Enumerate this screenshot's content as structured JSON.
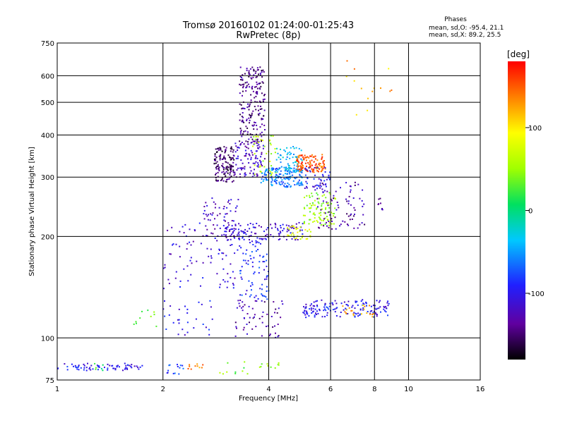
{
  "chart_data": {
    "type": "scatter",
    "title": "Tromsø 20160102 01:24:00-01:25:43",
    "subtitle": "RwPretec (8p)",
    "xlabel": "Frequency [MHz]",
    "ylabel": "Stationary phase Virtual Height [km]",
    "xscale": "log",
    "yscale": "log",
    "xlim": [
      1,
      16
    ],
    "ylim": [
      75,
      750
    ],
    "xticks": [
      1,
      2,
      4,
      6,
      8,
      10,
      16
    ],
    "yticks": [
      75,
      100,
      200,
      300,
      400,
      500,
      600,
      750
    ],
    "grid": true,
    "phases": {
      "title": "Phases",
      "line_o": "mean, sd,O: -95.4, 21.1",
      "line_x": "mean, sd,X:  89.2, 25.5"
    },
    "colorbar": {
      "label": "[deg]",
      "range": [
        -180,
        180
      ],
      "ticks": [
        100,
        0,
        -100
      ],
      "colormap": "rainbow"
    },
    "clusters": [
      {
        "x": [
          1.0,
          1.75
        ],
        "y": [
          80,
          84
        ],
        "phase": -100,
        "n": 70
      },
      {
        "x": [
          1.25,
          1.35
        ],
        "y": [
          80,
          84
        ],
        "phase": 10,
        "n": 6
      },
      {
        "x": [
          2.0,
          2.3
        ],
        "y": [
          78,
          84
        ],
        "phase": -80,
        "n": 14
      },
      {
        "x": [
          2.35,
          2.6
        ],
        "y": [
          80,
          84
        ],
        "phase": 140,
        "n": 10
      },
      {
        "x": [
          2.9,
          4.3
        ],
        "y": [
          78,
          86
        ],
        "phase": 40,
        "n": 20
      },
      {
        "x": [
          1.65,
          2.0
        ],
        "y": [
          108,
          122
        ],
        "phase": 40,
        "n": 10
      },
      {
        "x": [
          2.0,
          2.8
        ],
        "y": [
          100,
          130
        ],
        "phase": -100,
        "n": 30
      },
      {
        "x": [
          2.0,
          3.3
        ],
        "y": [
          140,
          220
        ],
        "phase": -110,
        "n": 90
      },
      {
        "x": [
          2.6,
          3.3
        ],
        "y": [
          200,
          260
        ],
        "phase": -120,
        "n": 60
      },
      {
        "x": [
          2.8,
          3.2
        ],
        "y": [
          290,
          370
        ],
        "phase": -150,
        "n": 140
      },
      {
        "x": [
          3.3,
          3.9
        ],
        "y": [
          380,
          640
        ],
        "phase": -140,
        "n": 200
      },
      {
        "x": [
          3.2,
          3.9
        ],
        "y": [
          300,
          380
        ],
        "phase": -120,
        "n": 100
      },
      {
        "x": [
          3.6,
          4.2
        ],
        "y": [
          300,
          400
        ],
        "phase": 60,
        "n": 40
      },
      {
        "x": [
          3.8,
          5.0
        ],
        "y": [
          280,
          320
        ],
        "phase": -60,
        "n": 160
      },
      {
        "x": [
          4.2,
          5.0
        ],
        "y": [
          310,
          370
        ],
        "phase": -40,
        "n": 60
      },
      {
        "x": [
          4.8,
          5.8
        ],
        "y": [
          310,
          350
        ],
        "phase": 150,
        "n": 120
      },
      {
        "x": [
          5.0,
          6.0
        ],
        "y": [
          270,
          320
        ],
        "phase": -100,
        "n": 50
      },
      {
        "x": [
          5.0,
          6.2
        ],
        "y": [
          215,
          270
        ],
        "phase": 50,
        "n": 90
      },
      {
        "x": [
          5.5,
          7.5
        ],
        "y": [
          210,
          290
        ],
        "phase": -130,
        "n": 80
      },
      {
        "x": [
          3.0,
          5.0
        ],
        "y": [
          195,
          220
        ],
        "phase": -110,
        "n": 120
      },
      {
        "x": [
          4.5,
          5.3
        ],
        "y": [
          195,
          215
        ],
        "phase": 80,
        "n": 30
      },
      {
        "x": [
          3.3,
          4.0
        ],
        "y": [
          130,
          200
        ],
        "phase": -90,
        "n": 80
      },
      {
        "x": [
          3.2,
          4.4
        ],
        "y": [
          100,
          130
        ],
        "phase": -130,
        "n": 60
      },
      {
        "x": [
          5.0,
          8.8
        ],
        "y": [
          115,
          130
        ],
        "phase": -100,
        "n": 150
      },
      {
        "x": [
          6.5,
          8.0
        ],
        "y": [
          115,
          125
        ],
        "phase": 120,
        "n": 20
      },
      {
        "x": [
          6.5,
          9.0
        ],
        "y": [
          450,
          680
        ],
        "phase": 120,
        "n": 14
      },
      {
        "x": [
          8.2,
          8.6
        ],
        "y": [
          240,
          260
        ],
        "phase": -140,
        "n": 8
      }
    ]
  }
}
